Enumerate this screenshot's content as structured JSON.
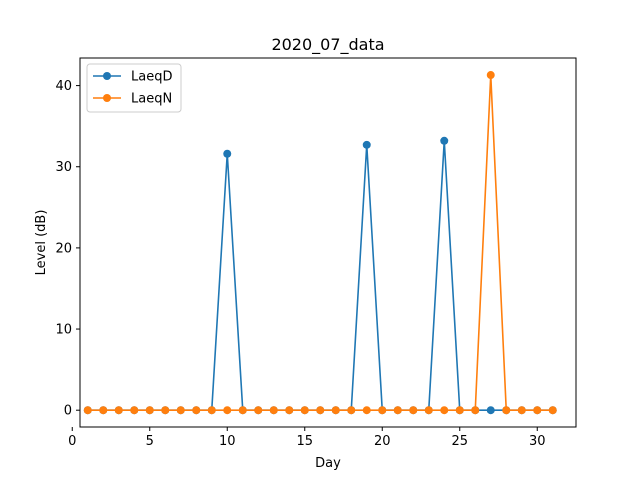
{
  "chart_data": {
    "type": "line",
    "title": "2020_07_data",
    "xlabel": "Day",
    "ylabel": "Level (dB)",
    "xlim": [
      0.5,
      32.5
    ],
    "ylim": [
      -2.07,
      43.4
    ],
    "xticks": [
      0,
      5,
      10,
      15,
      20,
      25,
      30
    ],
    "yticks": [
      0,
      10,
      20,
      30,
      40
    ],
    "grid": false,
    "legend_position": "top-left",
    "x": [
      1,
      2,
      3,
      4,
      5,
      6,
      7,
      8,
      9,
      10,
      11,
      12,
      13,
      14,
      15,
      16,
      17,
      18,
      19,
      20,
      21,
      22,
      23,
      24,
      25,
      26,
      27,
      28,
      29,
      30,
      31
    ],
    "series": [
      {
        "name": "LaeqD",
        "color": "#1f77b4",
        "values": [
          0,
          0,
          0,
          0,
          0,
          0,
          0,
          0,
          0,
          31.6,
          0,
          0,
          0,
          0,
          0,
          0,
          0,
          0,
          32.7,
          0,
          0,
          0,
          0,
          33.2,
          0,
          0,
          0,
          0,
          0,
          0,
          0
        ]
      },
      {
        "name": "LaeqN",
        "color": "#ff7f0e",
        "values": [
          0,
          0,
          0,
          0,
          0,
          0,
          0,
          0,
          0,
          0,
          0,
          0,
          0,
          0,
          0,
          0,
          0,
          0,
          0,
          0,
          0,
          0,
          0,
          0,
          0,
          0,
          41.3,
          0,
          0,
          0,
          0
        ]
      }
    ]
  }
}
